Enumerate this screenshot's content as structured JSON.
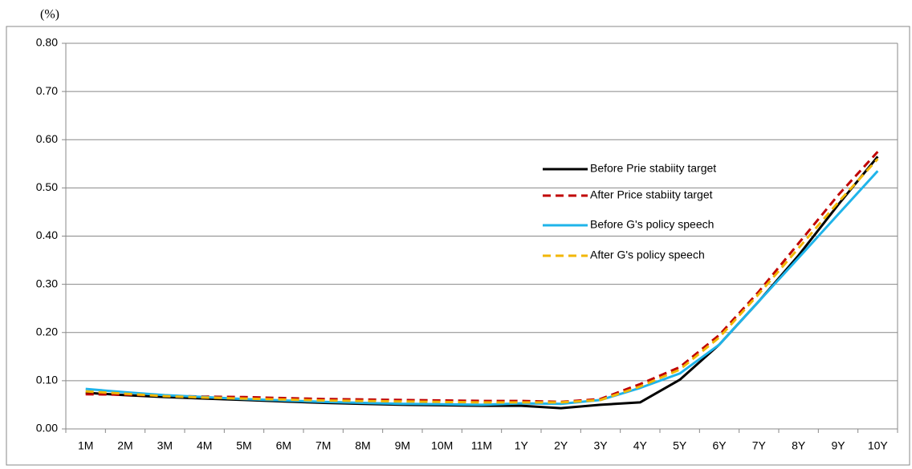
{
  "chart_data": {
    "type": "line",
    "y_label": "(%)",
    "categories": [
      "1M",
      "2M",
      "3M",
      "4M",
      "5M",
      "6M",
      "7M",
      "8M",
      "9M",
      "10M",
      "11M",
      "1Y",
      "2Y",
      "3Y",
      "4Y",
      "5Y",
      "6Y",
      "7Y",
      "8Y",
      "9Y",
      "10Y"
    ],
    "series": [
      {
        "name": "Before Prie stabiity target",
        "color": "#000000",
        "dashed": false,
        "values": [
          0.075,
          0.07,
          0.066,
          0.063,
          0.06,
          0.057,
          0.054,
          0.052,
          0.05,
          0.049,
          0.048,
          0.048,
          0.043,
          0.05,
          0.055,
          0.102,
          0.175,
          0.265,
          0.36,
          0.465,
          0.565
        ]
      },
      {
        "name": "After Price stabiity target",
        "color": "#c00000",
        "dashed": true,
        "values": [
          0.072,
          0.071,
          0.069,
          0.067,
          0.066,
          0.064,
          0.062,
          0.061,
          0.06,
          0.059,
          0.058,
          0.058,
          0.056,
          0.062,
          0.093,
          0.128,
          0.195,
          0.285,
          0.385,
          0.485,
          0.575
        ]
      },
      {
        "name": "Before G's policy speech",
        "color": "#1fb4ea",
        "dashed": false,
        "values": [
          0.083,
          0.076,
          0.07,
          0.066,
          0.062,
          0.059,
          0.056,
          0.054,
          0.052,
          0.051,
          0.05,
          0.053,
          0.052,
          0.06,
          0.085,
          0.115,
          0.175,
          0.265,
          0.355,
          0.445,
          0.535
        ]
      },
      {
        "name": "After G's policy speech",
        "color": "#f2b705",
        "dashed": true,
        "values": [
          0.078,
          0.073,
          0.068,
          0.065,
          0.063,
          0.061,
          0.059,
          0.058,
          0.057,
          0.056,
          0.055,
          0.055,
          0.055,
          0.06,
          0.088,
          0.123,
          0.19,
          0.28,
          0.375,
          0.47,
          0.56
        ]
      }
    ],
    "ylim": [
      0,
      0.8
    ],
    "yticks": [
      {
        "value": 0,
        "label": "0.00"
      },
      {
        "value": 0.1,
        "label": "0.10"
      },
      {
        "value": 0.2,
        "label": "0.20"
      },
      {
        "value": 0.3,
        "label": "0.30"
      },
      {
        "value": 0.4,
        "label": "0.40"
      },
      {
        "value": 0.5,
        "label": "0.50"
      },
      {
        "value": 0.6,
        "label": "0.60"
      },
      {
        "value": 0.7,
        "label": "0.70"
      },
      {
        "value": 0.8,
        "label": "0.80"
      }
    ],
    "grid": true,
    "legend_position": "right"
  }
}
